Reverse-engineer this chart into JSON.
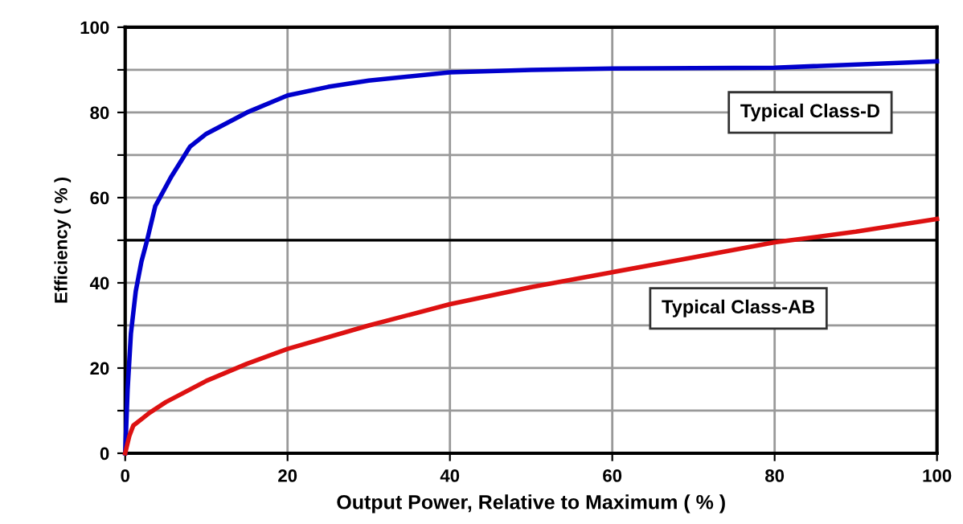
{
  "chart_data": {
    "type": "line",
    "xlabel": "Output Power, Relative to Maximum ( % )",
    "ylabel": "Efficiency ( % )",
    "xlim": [
      0,
      100
    ],
    "ylim": [
      0,
      100
    ],
    "xticks": [
      0,
      20,
      40,
      60,
      80,
      100
    ],
    "yticks": [
      0,
      {
        "value": 10,
        "label": null
      },
      20,
      {
        "value": 30,
        "label": null
      },
      40,
      {
        "value": 50,
        "label": null
      },
      60,
      {
        "value": 70,
        "label": null
      },
      80,
      {
        "value": 90,
        "label": null
      },
      100
    ],
    "grid": true,
    "legend": false,
    "marker": "none",
    "line_style": "solid",
    "ref_lines": [
      {
        "axis": "y",
        "value": 50,
        "label": null,
        "color": "#000000"
      }
    ],
    "series": [
      {
        "name": "Typical Class-D",
        "color": "#0000cc",
        "x": [
          0,
          0.3,
          0.7,
          1.3,
          2,
          2.7,
          3.7,
          5.7,
          8,
          10,
          15,
          20,
          25,
          30,
          40,
          50,
          60,
          80,
          100
        ],
        "values": [
          0,
          15,
          28,
          38,
          45,
          50,
          58,
          65,
          72,
          75,
          80,
          84,
          86,
          87.5,
          89.4,
          90,
          90.3,
          90.5,
          92
        ]
      },
      {
        "name": "Typical Class-AB",
        "color": "#dd1111",
        "x": [
          0,
          0.5,
          1,
          2,
          3,
          5,
          10,
          15,
          20,
          30,
          40,
          50,
          60,
          70,
          80,
          90,
          100
        ],
        "values": [
          0,
          4,
          6.5,
          8,
          9.5,
          12,
          17,
          21,
          24.5,
          30,
          35,
          39,
          42.5,
          46,
          49.5,
          52,
          55
        ]
      }
    ]
  }
}
